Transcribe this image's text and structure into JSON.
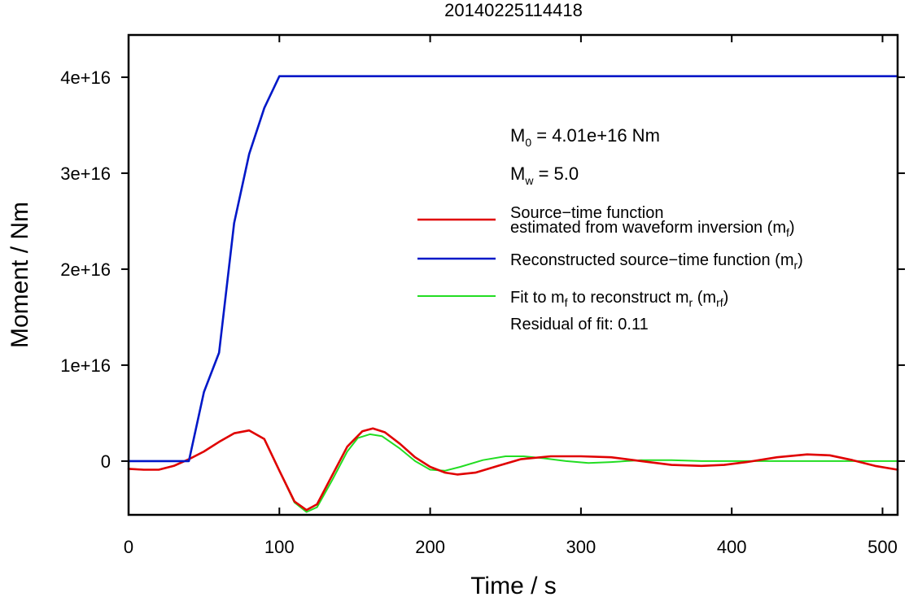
{
  "chart_data": {
    "type": "line",
    "title": "20140225114418",
    "xlabel": "Time / s",
    "ylabel": "Moment / Nm",
    "xlim": [
      0,
      510
    ],
    "ylim": [
      -5600000000000000.0,
      4.44e+16
    ],
    "xticks": [
      0,
      100,
      200,
      300,
      400,
      500
    ],
    "xtick_labels": [
      "0",
      "100",
      "200",
      "300",
      "400",
      "500"
    ],
    "yticks": [
      0,
      1e+16,
      2e+16,
      3e+16,
      4e+16
    ],
    "ytick_labels": [
      "0",
      "1e+16",
      "2e+16",
      "3e+16",
      "4e+16"
    ],
    "grid": false,
    "legend_position": "right",
    "annotations": {
      "m0_sym": "M",
      "m0_sub": "0",
      "m0_rest": " = 4.01e+16 Nm",
      "mw_sym": "M",
      "mw_sub": "w",
      "mw_rest": " = 5.0",
      "residual": "Residual of fit: 0.11"
    },
    "series": [
      {
        "name": "Source−time function estimated from waveform inversion (m_f)",
        "legend_line1": "Source−time function",
        "legend_line2_main": "estimated from waveform inversion (m",
        "legend_line2_sub": "f",
        "legend_line2_end": ")",
        "color": "#e00000",
        "x": [
          0,
          10,
          20,
          30,
          40,
          50,
          60,
          70,
          80,
          90,
          100,
          110,
          118,
          125,
          135,
          145,
          155,
          162,
          170,
          180,
          190,
          200,
          210,
          218,
          230,
          245,
          260,
          280,
          300,
          320,
          340,
          360,
          380,
          395,
          410,
          430,
          450,
          465,
          480,
          495,
          510
        ],
        "y": [
          -800000000000000.0,
          -900000000000000.0,
          -900000000000000.0,
          -500000000000000.0,
          200000000000000.0,
          1000000000000000.0,
          2000000000000000.0,
          2900000000000000.0,
          3200000000000000.0,
          2300000000000000.0,
          -1000000000000000.0,
          -4200000000000000.0,
          -5100000000000000.0,
          -4500000000000000.0,
          -1500000000000000.0,
          1500000000000000.0,
          3100000000000000.0,
          3400000000000000.0,
          3000000000000000.0,
          1800000000000000.0,
          400000000000000.0,
          -600000000000000.0,
          -1200000000000000.0,
          -1400000000000000.0,
          -1200000000000000.0,
          -500000000000000.0,
          200000000000000.0,
          500000000000000.0,
          500000000000000.0,
          400000000000000.0,
          0,
          -400000000000000.0,
          -500000000000000.0,
          -400000000000000.0,
          -100000000000000.0,
          400000000000000.0,
          700000000000000.0,
          600000000000000.0,
          100000000000000.0,
          -500000000000000.0,
          -900000000000000.0
        ]
      },
      {
        "name": "Reconstructed source−time function (m_r)",
        "legend_main": "Reconstructed source−time function (m",
        "legend_sub": "r",
        "legend_end": ")",
        "color": "#0018c8",
        "x": [
          0,
          40,
          50,
          60,
          70,
          80,
          90,
          100,
          510
        ],
        "y": [
          0,
          0,
          7200000000000000.0,
          1.13e+16,
          2.48e+16,
          3.2e+16,
          3.68e+16,
          4.01e+16,
          4.01e+16
        ]
      },
      {
        "name": "Fit to m_f to reconstruct m_r (m_rf)",
        "legend_p1": "Fit to m",
        "legend_s1": "f",
        "legend_p2": " to reconstruct m",
        "legend_s2": "r",
        "legend_p3": " (m",
        "legend_s3": "rf",
        "legend_p4": ")",
        "color": "#22dd22",
        "x": [
          0,
          10,
          20,
          30,
          40,
          50,
          60,
          70,
          80,
          90,
          100,
          110,
          118,
          125,
          135,
          145,
          152,
          160,
          168,
          180,
          190,
          200,
          210,
          220,
          235,
          250,
          262,
          275,
          290,
          305,
          320,
          340,
          360,
          380,
          400,
          430,
          460,
          490,
          510
        ],
        "y": [
          -800000000000000.0,
          -900000000000000.0,
          -900000000000000.0,
          -500000000000000.0,
          200000000000000.0,
          1000000000000000.0,
          2000000000000000.0,
          2900000000000000.0,
          3200000000000000.0,
          2300000000000000.0,
          -1000000000000000.0,
          -4300000000000000.0,
          -5300000000000000.0,
          -4800000000000000.0,
          -2000000000000000.0,
          1000000000000000.0,
          2400000000000000.0,
          2800000000000000.0,
          2600000000000000.0,
          1300000000000000.0,
          0,
          -900000000000000.0,
          -1000000000000000.0,
          -600000000000000.0,
          100000000000000.0,
          500000000000000.0,
          500000000000000.0,
          300000000000000.0,
          0,
          -200000000000000.0,
          -100000000000000.0,
          100000000000000.0,
          100000000000000.0,
          0,
          0,
          0,
          0,
          0,
          0
        ]
      }
    ]
  }
}
